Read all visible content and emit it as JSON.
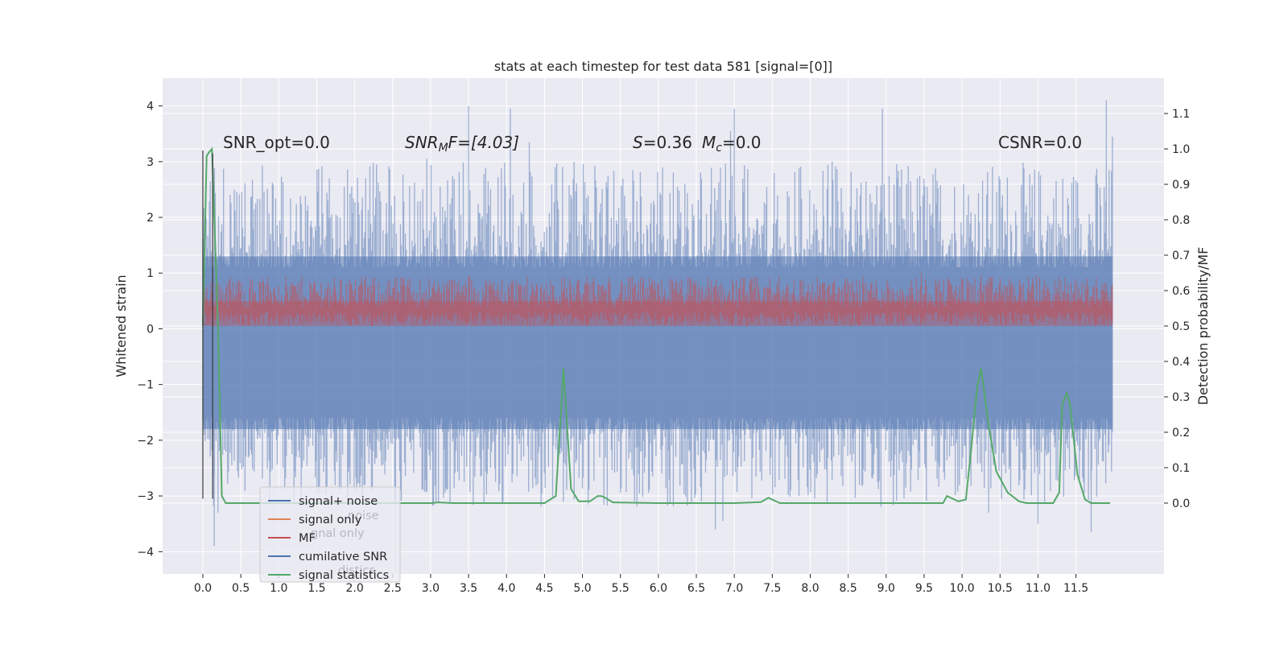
{
  "chart_data": {
    "type": "line",
    "title": "stats at each timestep for test data 581 [signal=[0]]",
    "xlabel": "",
    "ylabel": "Whitened strain",
    "y2label": "Detection probability/MF",
    "xlim": [
      -0.53,
      12.66
    ],
    "ylim": [
      -4.4,
      4.5
    ],
    "y2lim": [
      -0.2,
      1.2
    ],
    "grid": true,
    "x_ticks": [
      "0.0",
      "0.5",
      "1.0",
      "1.5",
      "2.0",
      "2.5",
      "3.0",
      "3.5",
      "4.0",
      "4.5",
      "5.0",
      "5.5",
      "6.0",
      "6.5",
      "7.0",
      "7.5",
      "8.0",
      "8.5",
      "9.0",
      "9.5",
      "10.0",
      "10.5",
      "11.0",
      "11.5"
    ],
    "y_ticks": [
      4,
      3,
      2,
      1,
      0,
      -1,
      -2,
      -3,
      -4
    ],
    "y_tick_labels": [
      "4",
      "3",
      "2",
      "1",
      "0",
      "−1",
      "−2",
      "−3",
      "−4"
    ],
    "y2_ticks": [
      1.1,
      1.0,
      0.9,
      0.8,
      0.7,
      0.6,
      0.5,
      0.4,
      0.3,
      0.2,
      0.1,
      0.0
    ],
    "y2_tick_labels": [
      "1.1",
      "1.0",
      "0.9",
      "0.8",
      "0.7",
      "0.6",
      "0.5",
      "0.4",
      "0.3",
      "0.2",
      "0.1",
      "0.0"
    ],
    "annotations": {
      "snr_opt": "SNR_opt=0.0",
      "snr_mf_main": "SNR",
      "snr_mf_sub": "M",
      "snr_mf_rest": "F=[4.03]",
      "s_main": "S",
      "s_rest": "=0.36",
      "mc_main": "M",
      "mc_sub": "c",
      "mc_rest": "=0.0",
      "csnr": "CSNR=0.0"
    },
    "legend": {
      "placement": "lower-left",
      "entries": [
        {
          "label": "signal+ noise",
          "color": "#4c72b0"
        },
        {
          "label": "signal only",
          "color": "#dd8452"
        },
        {
          "label": "MF",
          "color": "#c44e52"
        },
        {
          "label": "cumilative SNR",
          "color": "#4c72b0"
        },
        {
          "label": "signal statistics",
          "color": "#55a868"
        }
      ],
      "ghost_labels": [
        "noise",
        "gnal only",
        "distics"
      ]
    },
    "series": [
      {
        "name": "signal+ noise",
        "color": "#4c72b0",
        "x_range": [
          0.0,
          11.98
        ],
        "band_typical": [
          -2.0,
          1.8
        ],
        "peaks_upper": [
          [
            3.5,
            4.0
          ],
          [
            4.05,
            3.95
          ],
          [
            7.0,
            3.95
          ],
          [
            8.95,
            3.95
          ],
          [
            11.9,
            4.1
          ],
          [
            11.98,
            3.45
          ],
          [
            2.95,
            3.05
          ],
          [
            4.3,
            3.35
          ],
          [
            6.95,
            3.55
          ],
          [
            3.2,
            2.0
          ]
        ],
        "peaks_lower": [
          [
            0.15,
            -3.9
          ],
          [
            0.2,
            -3.3
          ],
          [
            6.75,
            -3.6
          ],
          [
            6.85,
            -3.45
          ],
          [
            11.7,
            -3.65
          ],
          [
            10.35,
            -3.3
          ],
          [
            11.0,
            -3.5
          ],
          [
            1.2,
            -3.1
          ]
        ]
      },
      {
        "name": "MF",
        "color": "#c44e52",
        "x_range": [
          0.0,
          11.98
        ],
        "y2_band": [
          0.5,
          0.64
        ],
        "y2_peak": 0.66
      },
      {
        "name": "signal statistics",
        "color": "#55a868",
        "x": [
          0.0,
          0.05,
          0.08,
          0.12,
          0.2,
          0.25,
          0.3,
          0.5,
          1.0,
          2.0,
          3.0,
          3.1,
          3.3,
          3.5,
          4.0,
          4.5,
          4.65,
          4.75,
          4.85,
          4.95,
          5.1,
          5.2,
          5.25,
          5.3,
          5.4,
          6.0,
          7.0,
          7.35,
          7.45,
          7.6,
          8.0,
          9.0,
          9.5,
          9.75,
          9.8,
          9.9,
          9.95,
          10.05,
          10.12,
          10.2,
          10.25,
          10.35,
          10.45,
          10.6,
          10.75,
          10.85,
          11.0,
          11.2,
          11.28,
          11.32,
          11.38,
          11.42,
          11.52,
          11.62,
          11.7,
          11.8,
          11.95
        ],
        "y2": [
          0.5,
          0.98,
          0.99,
          1.0,
          0.5,
          0.02,
          0.0,
          0.0,
          0.0,
          0.0,
          0.0,
          0.002,
          0.0,
          0.0,
          0.0,
          0.0,
          0.02,
          0.38,
          0.04,
          0.005,
          0.005,
          0.02,
          0.02,
          0.015,
          0.002,
          0.0,
          0.0,
          0.003,
          0.015,
          0.0,
          0.0,
          0.0,
          0.0,
          0.0,
          0.02,
          0.01,
          0.005,
          0.01,
          0.15,
          0.33,
          0.38,
          0.22,
          0.09,
          0.03,
          0.005,
          0.0,
          0.0,
          0.0,
          0.03,
          0.28,
          0.31,
          0.28,
          0.08,
          0.01,
          0.0,
          0.0,
          0.0
        ]
      },
      {
        "name": "cumilative SNR",
        "color": "#1f1f1f",
        "vlines": [
          {
            "x": 0.0,
            "y_from": -3.05,
            "y_to": 3.2
          },
          {
            "x": 0.13,
            "y_from": -3.05,
            "y_to": 3.15
          }
        ]
      }
    ]
  }
}
